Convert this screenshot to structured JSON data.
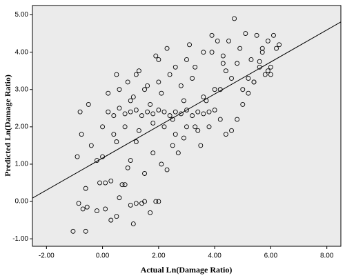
{
  "chart_data": {
    "type": "scatter",
    "x_label": "Actual Ln(Damage Ratio)",
    "y_label": "Predicted Ln(Damage Ratio)",
    "xlim": [
      -2.5,
      8.5
    ],
    "ylim": [
      -1.2,
      5.25
    ],
    "xticks": [
      {
        "value": -2,
        "label": "-2.00"
      },
      {
        "value": 0,
        "label": "0.00"
      },
      {
        "value": 2,
        "label": "2.00"
      },
      {
        "value": 4,
        "label": "4.00"
      },
      {
        "value": 6,
        "label": "6.00"
      },
      {
        "value": 8,
        "label": "8.00"
      }
    ],
    "yticks": [
      {
        "value": -1,
        "label": "-1.00"
      },
      {
        "value": 0,
        "label": "0.00"
      },
      {
        "value": 1,
        "label": "1.00"
      },
      {
        "value": 2,
        "label": "2.00"
      },
      {
        "value": 3,
        "label": "3.00"
      },
      {
        "value": 4,
        "label": "4.00"
      },
      {
        "value": 5,
        "label": "5.00"
      }
    ],
    "marker_color": "#000000",
    "background": "#ebebeb",
    "fit_line": {
      "x": [
        -2.5,
        8.5
      ],
      "y": [
        0.09,
        4.81
      ]
    },
    "x": [
      -1.05,
      -0.85,
      -0.6,
      -0.7,
      -0.55,
      -0.2,
      -0.1,
      0.1,
      0.3,
      0.5,
      0.6,
      0.8,
      1.0,
      1.1,
      1.2,
      1.4,
      1.5,
      1.7,
      1.9,
      2.0,
      -0.9,
      -0.75,
      -0.6,
      -0.4,
      -0.2,
      0.0,
      0.1,
      0.3,
      0.5,
      0.7,
      0.9,
      1.0,
      1.2,
      1.5,
      1.8,
      2.1,
      2.3,
      2.5,
      2.7,
      2.9,
      0.2,
      0.4,
      0.6,
      0.8,
      1.0,
      1.2,
      1.4,
      1.6,
      1.8,
      2.0,
      2.2,
      2.4,
      2.6,
      2.8,
      3.0,
      3.2,
      3.4,
      3.6,
      3.8,
      4.0,
      -0.8,
      -0.5,
      0.0,
      0.2,
      0.4,
      0.6,
      0.8,
      1.1,
      1.3,
      1.6,
      1.8,
      2.0,
      2.2,
      2.4,
      2.6,
      2.8,
      3.0,
      3.2,
      3.4,
      3.6,
      3.8,
      4.0,
      4.2,
      4.4,
      4.6,
      4.8,
      5.0,
      5.2,
      5.4,
      5.6,
      1.2,
      1.5,
      1.9,
      2.3,
      2.6,
      3.0,
      3.3,
      3.6,
      3.9,
      4.1,
      4.3,
      4.5,
      4.7,
      4.9,
      5.1,
      5.3,
      5.5,
      5.7,
      5.9,
      6.1,
      6.3,
      6.2,
      6.0,
      5.8,
      5.6,
      5.4,
      5.0,
      4.6,
      4.2,
      3.7,
      1.0,
      1.7,
      2.1,
      2.5,
      2.9,
      3.3,
      3.5,
      4.4,
      4.8,
      5.2,
      0.5,
      0.9,
      1.3,
      2.0,
      3.1,
      3.9,
      4.3,
      5.7,
      5.9,
      6.0
    ],
    "y": [
      -0.8,
      -0.05,
      -0.8,
      -0.2,
      -0.15,
      -0.25,
      0.5,
      -0.2,
      -0.5,
      -0.4,
      0.1,
      0.45,
      -0.1,
      -0.6,
      -0.05,
      -0.05,
      0.0,
      -0.3,
      0.0,
      0.0,
      1.2,
      1.8,
      0.35,
      1.5,
      1.1,
      1.2,
      0.5,
      0.55,
      1.6,
      0.45,
      0.9,
      1.1,
      1.6,
      0.75,
      1.3,
      1.0,
      0.85,
      1.5,
      1.3,
      1.7,
      2.4,
      2.3,
      2.5,
      2.35,
      2.4,
      2.45,
      2.3,
      2.4,
      2.35,
      2.45,
      2.4,
      2.3,
      2.4,
      2.35,
      2.45,
      2.3,
      2.4,
      2.35,
      2.4,
      2.45,
      2.4,
      2.6,
      2.0,
      2.9,
      1.8,
      3.0,
      2.0,
      2.8,
      1.9,
      3.1,
      2.1,
      3.2,
      2.0,
      3.4,
      1.8,
      3.1,
      2.0,
      3.3,
      1.9,
      2.8,
      2.0,
      3.0,
      2.2,
      3.5,
      1.9,
      3.7,
      2.6,
      3.3,
      3.2,
      3.6,
      3.4,
      3.0,
      3.9,
      4.1,
      3.6,
      3.8,
      3.6,
      4.0,
      4.45,
      4.3,
      3.9,
      4.3,
      4.9,
      4.1,
      4.5,
      3.8,
      4.45,
      4.0,
      4.3,
      4.45,
      4.2,
      4.1,
      3.6,
      3.4,
      3.75,
      3.2,
      3.0,
      3.3,
      3.0,
      2.7,
      2.7,
      2.6,
      2.9,
      2.2,
      2.7,
      2.0,
      1.5,
      1.8,
      2.2,
      2.9,
      3.4,
      3.2,
      3.5,
      3.8,
      4.2,
      4.0,
      3.7,
      4.1,
      3.5,
      3.4
    ]
  }
}
